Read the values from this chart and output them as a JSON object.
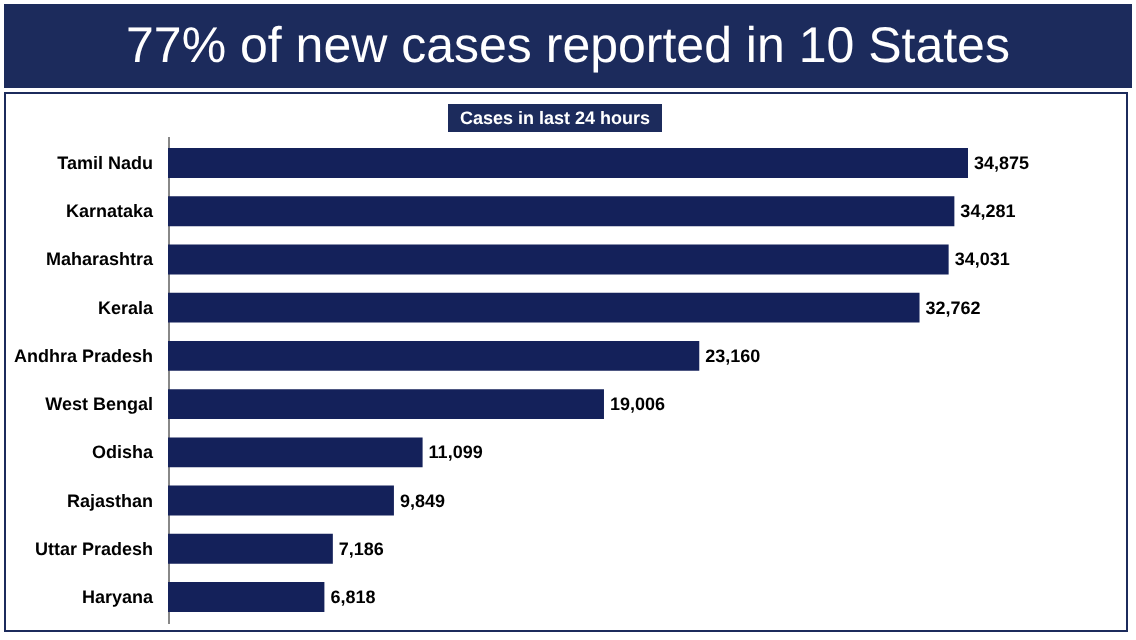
{
  "chart_data": {
    "type": "bar",
    "orientation": "horizontal",
    "title": "77% of new cases reported in 10 States",
    "subtitle": "Cases in last 24 hours",
    "categories": [
      "Tamil Nadu",
      "Karnataka",
      "Maharashtra",
      "Kerala",
      "Andhra Pradesh",
      "West Bengal",
      "Odisha",
      "Rajasthan",
      "Uttar Pradesh",
      "Haryana"
    ],
    "values": [
      34875,
      34281,
      34031,
      32762,
      23160,
      19006,
      11099,
      9849,
      7186,
      6818
    ],
    "value_labels": [
      "34,875",
      "34,281",
      "34,031",
      "32,762",
      "23,160",
      "19,006",
      "11,099",
      "9,849",
      "7,186",
      "6,818"
    ],
    "color": "#14215a"
  }
}
